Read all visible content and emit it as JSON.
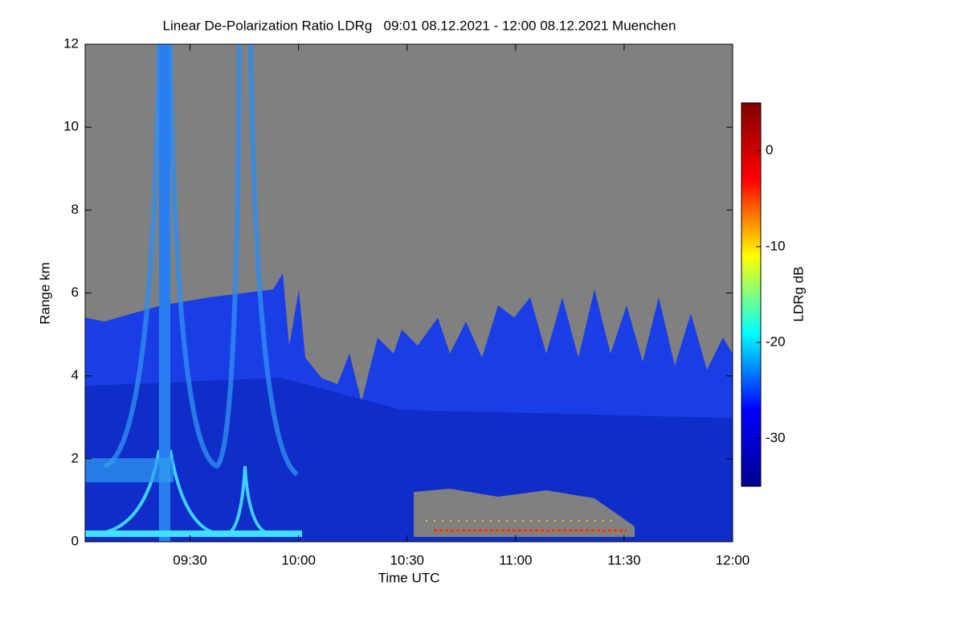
{
  "chart_data": {
    "type": "heatmap",
    "title": "Linear De-Polarization Ratio LDRg   09:01 08.12.2021 - 12:00 08.12.2021 Muenchen",
    "xlabel": "Time UTC",
    "ylabel": "Range km",
    "colorbar_label": "LDRg dB",
    "xlim": [
      541,
      720
    ],
    "xticks": [
      {
        "value": 570,
        "label": "09:30"
      },
      {
        "value": 600,
        "label": "10:00"
      },
      {
        "value": 630,
        "label": "10:30"
      },
      {
        "value": 660,
        "label": "11:00"
      },
      {
        "value": 690,
        "label": "11:30"
      },
      {
        "value": 720,
        "label": "12:00"
      }
    ],
    "ylim": [
      0,
      12
    ],
    "yticks": [
      0,
      2,
      4,
      6,
      8,
      10,
      12
    ],
    "zlim": [
      -35,
      5
    ],
    "zticks": [
      0,
      -10,
      -20,
      -30
    ],
    "colormap": [
      "#00008f",
      "#0000ff",
      "#00ffff",
      "#ffff00",
      "#ff0000",
      "#800000"
    ]
  }
}
